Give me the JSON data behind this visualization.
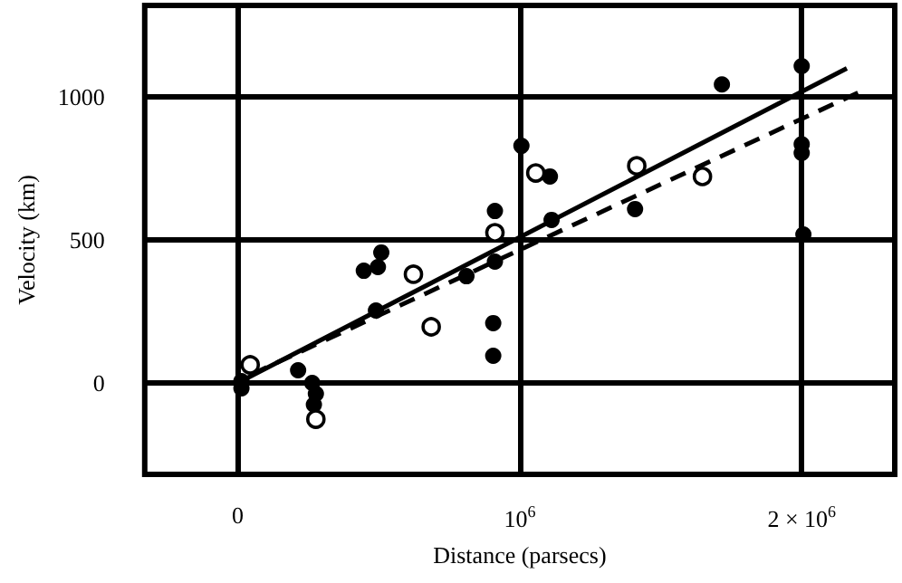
{
  "chart_data": {
    "type": "scatter",
    "xlabel": "Distance (parsecs)",
    "ylabel": "Velocity (km)",
    "xlim": [
      -330000,
      2330000
    ],
    "ylim": [
      -320,
      1320
    ],
    "xticks": [
      0,
      {
        "value": 1000000,
        "label": "10$^{6}$"
      },
      {
        "value": 2000000,
        "label": "2 × 10$^{6}$"
      }
    ],
    "yticks": [
      0,
      500,
      1000
    ],
    "grid": true,
    "marker": "circle",
    "series": [
      {
        "color": "#000000",
        "x": [
          13000,
          13000,
          214000,
          264000,
          277000,
          270000,
          447000,
          509000,
          497000,
          490000,
          811000,
          912000,
          912000,
          906000,
          906000,
          1006000,
          1107000,
          1113000,
          1409000,
          1717000,
          2000000,
          2000000,
          2000000,
          2006000
        ],
        "values": [
          -19,
          6,
          44,
          0,
          -38,
          -76,
          392,
          456,
          405,
          253,
          373,
          601,
          424,
          209,
          95,
          829,
          722,
          570,
          608,
          1044,
          1108,
          835,
          804,
          519
        ]
      },
      {
        "color": "#ffffff",
        "x": [
          44000,
          277000,
          623000,
          686000,
          912000,
          1057000,
          1415000,
          1648000
        ],
        "values": [
          63,
          -127,
          380,
          196,
          525,
          734,
          759,
          722
        ]
      },
      {
        "type": "line",
        "color": "#000000",
        "line_style": "solid",
        "marker": "none",
        "x": [
          0,
          2160000
        ],
        "values": [
          0,
          1100
        ]
      },
      {
        "type": "line",
        "color": "#000000",
        "line_style": "dashed",
        "marker": "none",
        "x": [
          50000,
          2200000
        ],
        "values": [
          30,
          1015
        ]
      }
    ]
  }
}
